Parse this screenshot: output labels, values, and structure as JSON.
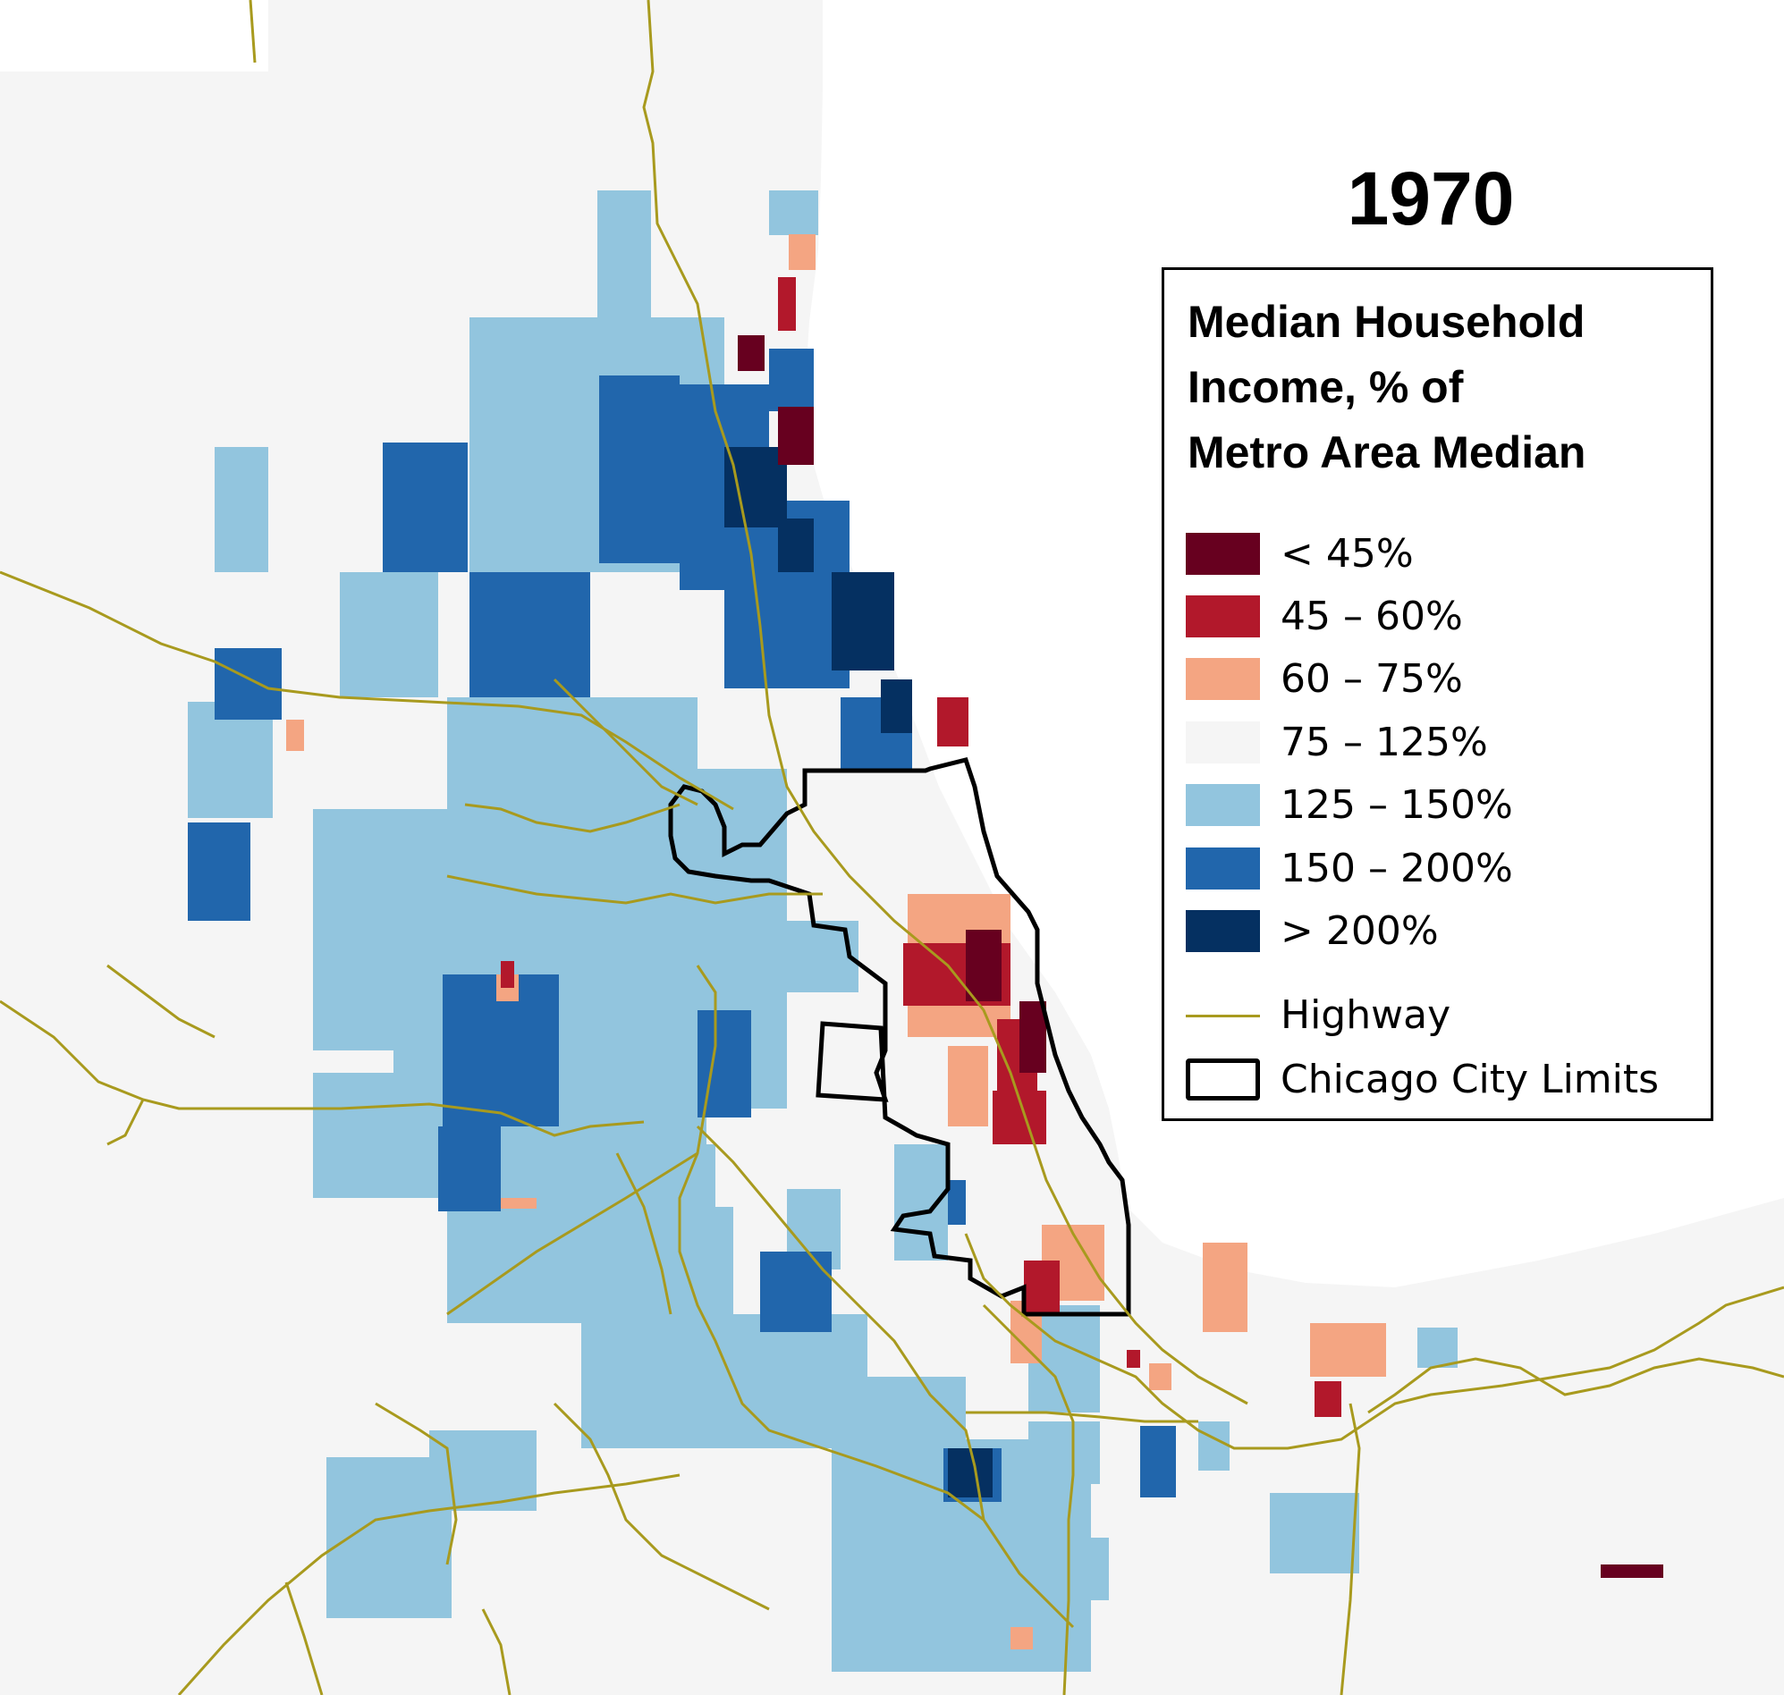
{
  "title": "1970",
  "legend": {
    "title_lines": [
      "Median Household",
      "Income, % of",
      "Metro Area Median"
    ],
    "classes": [
      {
        "label": "< 45%",
        "color": "#67001f"
      },
      {
        "label": "45 – 60%",
        "color": "#b2182b"
      },
      {
        "label": "60 – 75%",
        "color": "#f4a582"
      },
      {
        "label": "75 – 125%",
        "color": "#f5f5f5"
      },
      {
        "label": "125 – 150%",
        "color": "#92c5de"
      },
      {
        "label": "150 – 200%",
        "color": "#2166ac"
      },
      {
        "label": "> 200%",
        "color": "#053061"
      }
    ],
    "highway_label": "Highway",
    "highway_color": "#a89a1e",
    "city_limits_label": "Chicago City Limits"
  }
}
